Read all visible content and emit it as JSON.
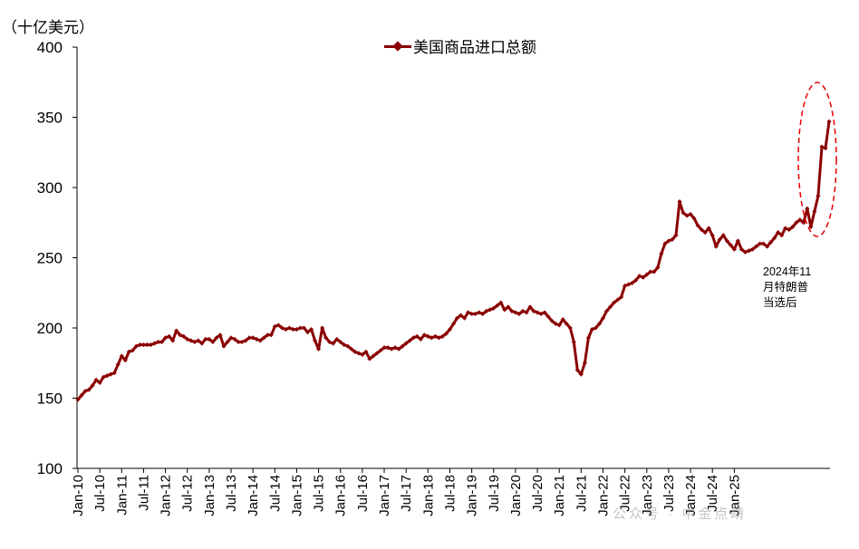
{
  "chart_data": {
    "type": "line",
    "unit_label": "（十亿美元）",
    "title": "",
    "xlabel": "",
    "ylabel": "",
    "ylim": [
      100,
      400
    ],
    "yticks": [
      100,
      150,
      200,
      250,
      300,
      350,
      400
    ],
    "xticks": [
      "Jan-10",
      "Jul-10",
      "Jan-11",
      "Jul-11",
      "Jan-12",
      "Jul-12",
      "Jan-13",
      "Jul-13",
      "Jan-14",
      "Jul-14",
      "Jan-15",
      "Jul-15",
      "Jan-16",
      "Jul-16",
      "Jan-17",
      "Jul-17",
      "Jan-18",
      "Jul-18",
      "Jan-19",
      "Jul-19",
      "Jan-20",
      "Jul-20",
      "Jan-21",
      "Jul-21",
      "Jan-22",
      "Jul-22",
      "Jan-23",
      "Jul-23",
      "Jan-24",
      "Jul-24",
      "Jan-25"
    ],
    "x_start": "Jan-10",
    "x_frequency": "monthly",
    "grid": false,
    "legend_position": "top",
    "series": [
      {
        "name": "美国商品进口总额",
        "color": "#8B0000",
        "values": [
          149,
          152,
          155,
          156,
          159,
          163,
          161,
          165,
          166,
          167,
          168,
          174,
          180,
          177,
          183,
          184,
          187,
          188,
          188,
          188,
          188,
          189,
          190,
          190,
          193,
          194,
          191,
          198,
          195,
          194,
          192,
          191,
          190,
          191,
          189,
          192,
          192,
          190,
          193,
          195,
          187,
          190,
          193,
          192,
          190,
          190,
          191,
          193,
          193,
          192,
          191,
          193,
          195,
          195,
          201,
          202,
          200,
          199,
          200,
          199,
          199,
          200,
          200,
          197,
          199,
          191,
          185,
          200,
          193,
          190,
          189,
          192,
          190,
          188,
          187,
          185,
          183,
          182,
          181,
          183,
          178,
          180,
          182,
          184,
          186,
          186,
          185,
          186,
          185,
          187,
          189,
          191,
          193,
          194,
          192,
          195,
          194,
          193,
          194,
          193,
          194,
          196,
          199,
          203,
          207,
          209,
          207,
          211,
          210,
          210,
          211,
          210,
          212,
          213,
          214,
          216,
          218,
          213,
          215,
          212,
          211,
          210,
          212,
          211,
          215,
          212,
          211,
          210,
          211,
          208,
          205,
          203,
          202,
          206,
          203,
          200,
          190,
          170,
          167,
          175,
          193,
          199,
          200,
          203,
          207,
          212,
          215,
          218,
          220,
          222,
          230,
          231,
          232,
          234,
          237,
          236,
          238,
          240,
          240,
          243,
          253,
          260,
          262,
          263,
          266,
          290,
          282,
          280,
          281,
          278,
          273,
          270,
          268,
          271,
          266,
          258,
          263,
          266,
          262,
          259,
          256,
          262,
          256,
          254,
          255,
          256,
          258,
          260,
          260,
          258,
          261,
          264,
          268,
          266,
          271,
          270,
          272,
          275,
          277,
          275,
          285,
          272,
          283,
          294,
          329,
          328,
          347
        ]
      }
    ]
  },
  "annotation": {
    "note_lines": [
      "2024年11",
      "月特朗普",
      "当选后"
    ],
    "highlight_color": "#e60000"
  },
  "watermark": "公众号 · 中金点睛"
}
